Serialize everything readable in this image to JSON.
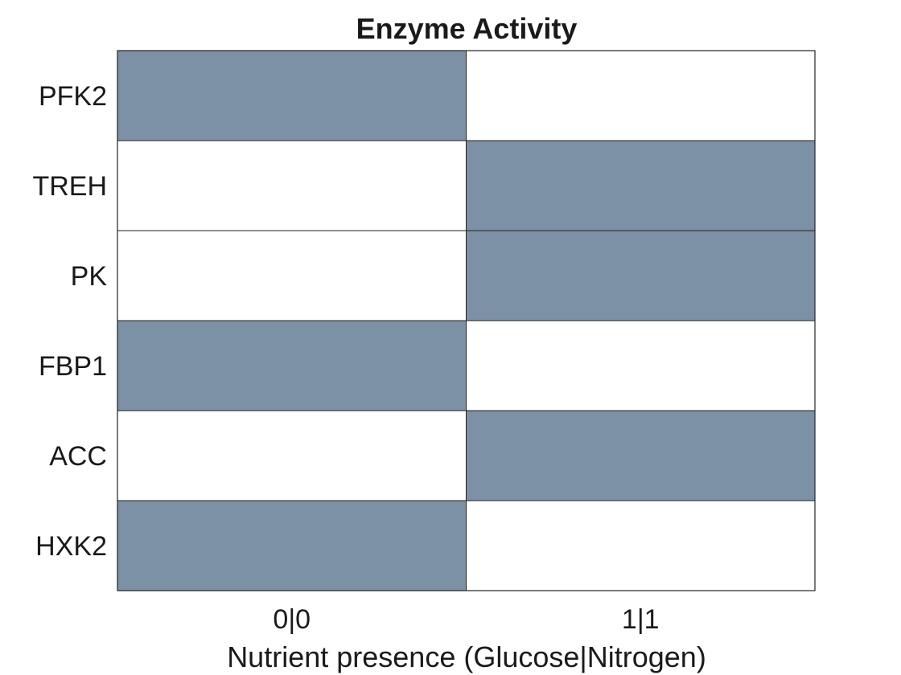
{
  "chart_data": {
    "type": "heatmap",
    "title": "Enzyme Activity",
    "xlabel": "Nutrient presence (Glucose|Nitrogen)",
    "ylabel": "",
    "x_categories": [
      "0|0",
      "1|1"
    ],
    "y_categories": [
      "PFK2",
      "TREH",
      "PK",
      "FBP1",
      "ACC",
      "HXK2"
    ],
    "values": [
      [
        1,
        0
      ],
      [
        0,
        1
      ],
      [
        0,
        1
      ],
      [
        1,
        0
      ],
      [
        0,
        1
      ],
      [
        1,
        0
      ]
    ],
    "colors": {
      "active": "#7c91a5",
      "inactive": "#ffffff",
      "border": "#222222"
    },
    "grid": true,
    "legend": "none"
  }
}
